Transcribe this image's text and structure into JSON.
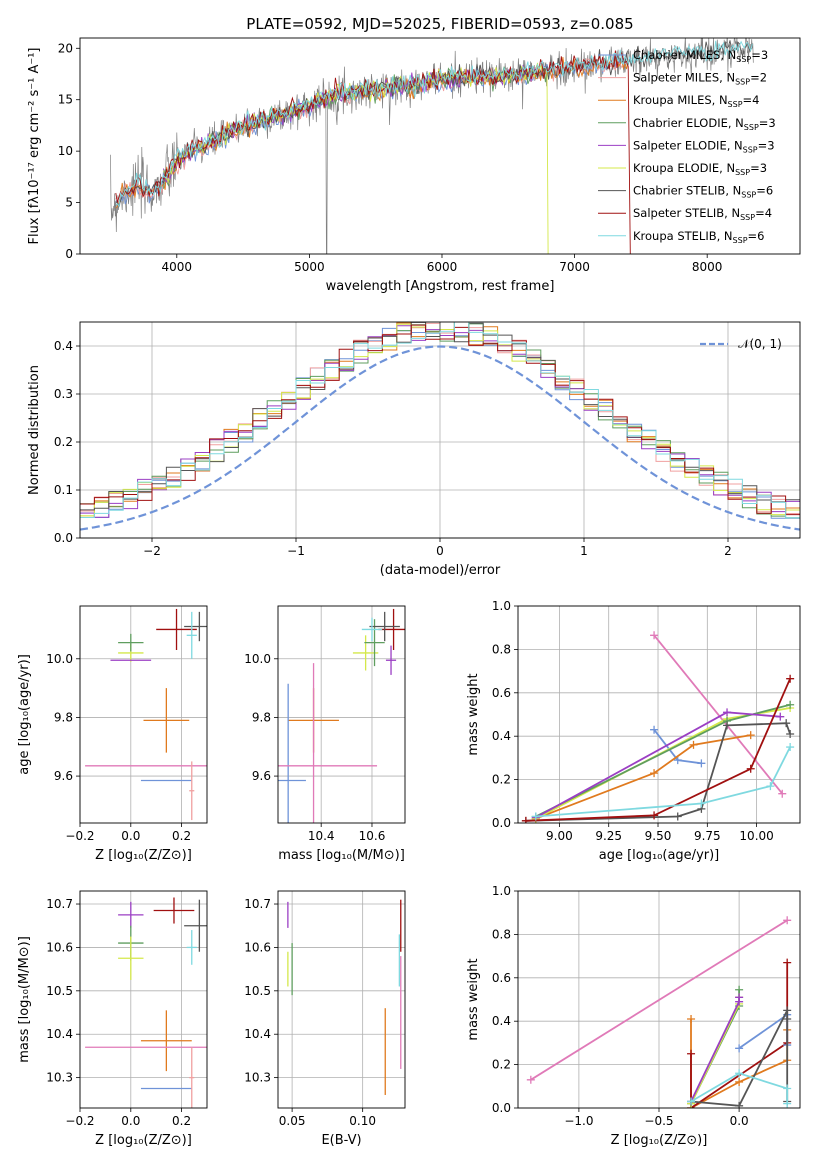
{
  "figure_title": "PLATE=0592, MJD=52025, FIBERID=0593, z=0.085",
  "colors": {
    "chabrier_miles": "#6f93d8",
    "salpeter_miles": "#f0a0a0",
    "kroupa_miles": "#e07a1e",
    "chabrier_elodie": "#5f9e5f",
    "salpeter_elodie": "#9b3fc4",
    "kroupa_elodie": "#d4e84a",
    "chabrier_stelib": "#555555",
    "salpeter_stelib": "#a01010",
    "kroupa_stelib": "#7fd9e0",
    "gaussian": "#6f93d8",
    "pink": "#e07ab8"
  },
  "chart_data": [
    {
      "id": "spectrum",
      "type": "line",
      "xlabel": "wavelength [Angstrom, rest frame]",
      "ylabel": "Flux [fλ10⁻¹⁷ erg cm⁻² s⁻¹ A⁻¹]",
      "xlim": [
        3270,
        8700
      ],
      "ylim": [
        0,
        21
      ],
      "xticks": [
        "4000",
        "5000",
        "6000",
        "7000",
        "8000"
      ],
      "yticks": [
        "0",
        "5",
        "10",
        "15",
        "20"
      ],
      "grid": false,
      "legend_position": "top-right",
      "legend": [
        {
          "text": "Chabrier MILES, N",
          "sub": "SSP",
          "suffix": "=3"
        },
        {
          "text": "Salpeter MILES, N",
          "sub": "SSP",
          "suffix": "=2"
        },
        {
          "text": "Kroupa MILES, N",
          "sub": "SSP",
          "suffix": "=4"
        },
        {
          "text": "Chabrier ELODIE, N",
          "sub": "SSP",
          "suffix": "=3"
        },
        {
          "text": "Salpeter ELODIE, N",
          "sub": "SSP",
          "suffix": "=3"
        },
        {
          "text": "Kroupa ELODIE, N",
          "sub": "SSP",
          "suffix": "=3"
        },
        {
          "text": "Chabrier STELIB, N",
          "sub": "SSP",
          "suffix": "=6"
        },
        {
          "text": "Salpeter STELIB, N",
          "sub": "SSP",
          "suffix": "=4"
        },
        {
          "text": "Kroupa STELIB, N",
          "sub": "SSP",
          "suffix": "=6"
        }
      ],
      "continuum": [
        [
          3500,
          4.2
        ],
        [
          3600,
          6.0
        ],
        [
          3700,
          6.5
        ],
        [
          3800,
          6.0
        ],
        [
          3900,
          7.0
        ],
        [
          4000,
          9.0
        ],
        [
          4100,
          10.0
        ],
        [
          4300,
          11.0
        ],
        [
          4500,
          12.5
        ],
        [
          4800,
          13.5
        ],
        [
          5000,
          14.5
        ],
        [
          5200,
          15.5
        ],
        [
          5500,
          16.0
        ],
        [
          5800,
          16.5
        ],
        [
          6000,
          17.0
        ],
        [
          6300,
          17.2
        ],
        [
          6600,
          17.5
        ],
        [
          6900,
          18.0
        ],
        [
          7200,
          18.5
        ],
        [
          7400,
          18.8
        ],
        [
          7700,
          19.2
        ],
        [
          8000,
          19.6
        ],
        [
          8300,
          20.0
        ]
      ]
    },
    {
      "id": "residuals",
      "type": "histogram",
      "xlabel": "(data-model)/error",
      "ylabel": "Normed distribution",
      "xlim": [
        -2.5,
        2.5
      ],
      "ylim": [
        0,
        0.45
      ],
      "xticks": [
        "−2",
        "−1",
        "0",
        "1",
        "2"
      ],
      "yticks": [
        "0.0",
        "0.1",
        "0.2",
        "0.3",
        "0.4"
      ],
      "grid": true,
      "legend_position": "top-right",
      "legend": [
        {
          "text": "𝒩(0, 1)"
        }
      ],
      "bin_width": 0.1
    },
    {
      "id": "age_vs_Z",
      "type": "scatter",
      "xlabel": "Z [log₁₀(Z/Z⊙)]",
      "ylabel": "age  [log₁₀(age/yr)]",
      "xlim": [
        -0.2,
        0.3
      ],
      "ylim": [
        9.44,
        10.18
      ],
      "xticks": [
        "−0.2",
        "0.0",
        "0.2"
      ],
      "yticks": [
        "9.6",
        "9.8",
        "10.0"
      ],
      "grid": true,
      "points": [
        {
          "model": "kroupa_miles",
          "x": 0.14,
          "xerr": 0.09,
          "y": 9.79,
          "yerr": 0.11
        },
        {
          "model": "chabrier_miles",
          "x": 0.14,
          "xerr": 0.1,
          "y": 9.585,
          "yerr": 0.0
        },
        {
          "model": "pink",
          "x": 0.06,
          "xerr": 0.24,
          "y": 9.635,
          "yerr": 0.0
        },
        {
          "model": "kroupa_elodie",
          "x": 0.0,
          "xerr": 0.05,
          "y": 10.02,
          "yerr": 0.03
        },
        {
          "model": "chabrier_elodie",
          "x": 0.0,
          "xerr": 0.05,
          "y": 10.055,
          "yerr": 0.03
        },
        {
          "model": "salpeter_elodie",
          "x": 0.0,
          "xerr": 0.08,
          "y": 9.995,
          "yerr": 0.0
        },
        {
          "model": "salpeter_stelib",
          "x": 0.18,
          "xerr": 0.08,
          "y": 10.1,
          "yerr": 0.07
        },
        {
          "model": "chabrier_stelib",
          "x": 0.27,
          "xerr": 0.06,
          "y": 10.11,
          "yerr": 0.05
        },
        {
          "model": "kroupa_stelib",
          "x": 0.24,
          "xerr": 0.02,
          "y": 10.08,
          "yerr": 0.08
        },
        {
          "model": "salpeter_miles",
          "x": 0.24,
          "xerr": 0.01,
          "y": 9.55,
          "yerr": 0.1
        }
      ]
    },
    {
      "id": "age_vs_mass",
      "type": "scatter",
      "xlabel": "mass [log₁₀(M/M⊙)]",
      "ylabel": "",
      "xlim": [
        10.23,
        10.73
      ],
      "ylim": [
        9.44,
        10.18
      ],
      "xticks": [
        "10.4",
        "10.6"
      ],
      "yticks": [
        "9.6",
        "9.8",
        "10.0"
      ],
      "grid": true,
      "points": [
        {
          "model": "kroupa_miles",
          "x": 10.37,
          "xerr": 0.1,
          "y": 9.79,
          "yerr": 0.11
        },
        {
          "model": "chabrier_miles",
          "x": 10.27,
          "xerr": 0.07,
          "y": 9.585,
          "yerr": 0.33
        },
        {
          "model": "pink",
          "x": 10.37,
          "xerr": 0.25,
          "y": 9.635,
          "yerr": 0.35
        },
        {
          "model": "kroupa_elodie",
          "x": 10.575,
          "xerr": 0.05,
          "y": 10.02,
          "yerr": 0.06
        },
        {
          "model": "chabrier_elodie",
          "x": 10.61,
          "xerr": 0.04,
          "y": 10.055,
          "yerr": 0.08
        },
        {
          "model": "salpeter_elodie",
          "x": 10.675,
          "xerr": 0.02,
          "y": 9.995,
          "yerr": 0.05
        },
        {
          "model": "salpeter_stelib",
          "x": 10.685,
          "xerr": 0.06,
          "y": 10.1,
          "yerr": 0.07
        },
        {
          "model": "chabrier_stelib",
          "x": 10.65,
          "xerr": 0.06,
          "y": 10.11,
          "yerr": 0.05
        },
        {
          "model": "kroupa_stelib",
          "x": 10.6,
          "xerr": 0.04,
          "y": 10.1,
          "yerr": 0.04
        }
      ]
    },
    {
      "id": "massweight_vs_age",
      "type": "line",
      "xlabel": "age  [log₁₀(age/yr)]",
      "ylabel": "mass weight",
      "xlim": [
        8.79,
        10.22
      ],
      "ylim": [
        0,
        1
      ],
      "xticks": [
        "9.00",
        "9.25",
        "9.50",
        "9.75",
        "10.00"
      ],
      "yticks": [
        "0.0",
        "0.2",
        "0.4",
        "0.6",
        "0.8",
        "1.0"
      ],
      "grid": true,
      "series": [
        {
          "model": "chabrier_miles",
          "x": [
            9.48,
            9.6,
            9.72
          ],
          "y": [
            0.43,
            0.29,
            0.275
          ]
        },
        {
          "model": "pink",
          "x": [
            9.48,
            10.13
          ],
          "y": [
            0.865,
            0.135
          ]
        },
        {
          "model": "kroupa_miles",
          "x": [
            8.88,
            9.48,
            9.68,
            9.97
          ],
          "y": [
            0.02,
            0.23,
            0.36,
            0.405
          ]
        },
        {
          "model": "kroupa_elodie",
          "x": [
            8.88,
            9.85,
            10.17
          ],
          "y": [
            0.02,
            0.48,
            0.53
          ]
        },
        {
          "model": "chabrier_elodie",
          "x": [
            8.88,
            9.85,
            10.17
          ],
          "y": [
            0.03,
            0.47,
            0.545
          ]
        },
        {
          "model": "salpeter_elodie",
          "x": [
            8.88,
            9.85,
            10.12
          ],
          "y": [
            0.025,
            0.51,
            0.49
          ]
        },
        {
          "model": "chabrier_stelib",
          "x": [
            8.83,
            9.6,
            9.72,
            9.85,
            10.15,
            10.17
          ],
          "y": [
            0.01,
            0.03,
            0.065,
            0.45,
            0.46,
            0.41
          ]
        },
        {
          "model": "salpeter_stelib",
          "x": [
            8.83,
            9.48,
            9.97,
            10.17
          ],
          "y": [
            0.01,
            0.035,
            0.25,
            0.665
          ]
        },
        {
          "model": "kroupa_stelib",
          "x": [
            8.88,
            9.72,
            10.07,
            10.17
          ],
          "y": [
            0.03,
            0.09,
            0.17,
            0.35
          ]
        }
      ]
    },
    {
      "id": "mass_vs_Z",
      "type": "scatter",
      "xlabel": "Z [log₁₀(Z/Z⊙)]",
      "ylabel": "mass [log₁₀(M/M⊙)]",
      "xlim": [
        -0.2,
        0.3
      ],
      "ylim": [
        10.23,
        10.73
      ],
      "xticks": [
        "−0.2",
        "0.0",
        "0.2"
      ],
      "yticks": [
        "10.3",
        "10.4",
        "10.5",
        "10.6",
        "10.7"
      ],
      "grid": true,
      "points": [
        {
          "model": "salpeter_elodie",
          "x": 0.0,
          "xerr": 0.05,
          "y": 10.675,
          "yerr": 0.03
        },
        {
          "model": "salpeter_stelib",
          "x": 0.17,
          "xerr": 0.08,
          "y": 10.685,
          "yerr": 0.03
        },
        {
          "model": "chabrier_stelib",
          "x": 0.27,
          "xerr": 0.06,
          "y": 10.65,
          "yerr": 0.06
        },
        {
          "model": "chabrier_elodie",
          "x": 0.0,
          "xerr": 0.05,
          "y": 10.61,
          "yerr": 0.04
        },
        {
          "model": "kroupa_stelib",
          "x": 0.24,
          "xerr": 0.02,
          "y": 10.6,
          "yerr": 0.04
        },
        {
          "model": "kroupa_elodie",
          "x": 0.0,
          "xerr": 0.05,
          "y": 10.575,
          "yerr": 0.05
        },
        {
          "model": "kroupa_miles",
          "x": 0.14,
          "xerr": 0.1,
          "y": 10.385,
          "yerr": 0.07
        },
        {
          "model": "pink",
          "x": 0.06,
          "xerr": 0.24,
          "y": 10.37,
          "yerr": 0.0
        },
        {
          "model": "chabrier_miles",
          "x": 0.14,
          "xerr": 0.1,
          "y": 10.275,
          "yerr": 0.0
        },
        {
          "model": "salpeter_miles",
          "x": 0.24,
          "xerr": 0.01,
          "y": 10.3,
          "yerr": 0.07
        }
      ]
    },
    {
      "id": "mass_vs_ebv",
      "type": "scatter",
      "xlabel": "E(B-V)",
      "ylabel": "",
      "xlim": [
        0.04,
        0.13
      ],
      "ylim": [
        10.23,
        10.73
      ],
      "xticks": [
        "0.05",
        "0.10"
      ],
      "yticks": [
        "10.3",
        "10.4",
        "10.5",
        "10.6",
        "10.7"
      ],
      "grid": true,
      "points": [
        {
          "model": "salpeter_elodie",
          "x": 0.047,
          "xerr": 0.0,
          "y": 10.675,
          "yerr": 0.03
        },
        {
          "model": "chabrier_elodie",
          "x": 0.05,
          "xerr": 0.0,
          "y": 10.55,
          "yerr": 0.06
        },
        {
          "model": "kroupa_elodie",
          "x": 0.047,
          "xerr": 0.0,
          "y": 10.55,
          "yerr": 0.04
        },
        {
          "model": "kroupa_miles",
          "x": 0.116,
          "xerr": 0.0,
          "y": 10.36,
          "yerr": 0.1
        },
        {
          "model": "salpeter_stelib",
          "x": 0.127,
          "xerr": 0.0,
          "y": 10.65,
          "yerr": 0.06
        },
        {
          "model": "kroupa_stelib",
          "x": 0.126,
          "xerr": 0.0,
          "y": 10.57,
          "yerr": 0.06
        },
        {
          "model": "pink",
          "x": 0.127,
          "xerr": 0.0,
          "y": 10.45,
          "yerr": 0.13
        }
      ]
    },
    {
      "id": "massweight_vs_Z",
      "type": "line",
      "xlabel": "Z [log₁₀(Z/Z⊙)]",
      "ylabel": "mass weight",
      "xlim": [
        -1.38,
        0.38
      ],
      "ylim": [
        0,
        1
      ],
      "xticks": [
        "−1.0",
        "−0.5",
        "0.0"
      ],
      "yticks": [
        "0.0",
        "0.2",
        "0.4",
        "0.6",
        "0.8",
        "1.0"
      ],
      "grid": true,
      "series": [
        {
          "model": "pink",
          "x": [
            -1.3,
            0.3
          ],
          "y": [
            0.13,
            0.865
          ]
        },
        {
          "model": "kroupa_miles",
          "x": [
            -0.3,
            -0.3,
            0.0,
            0.3,
            0.3
          ],
          "y": [
            0.41,
            0.0,
            0.12,
            0.22,
            0.36
          ]
        },
        {
          "model": "salpeter_stelib",
          "x": [
            -0.3,
            -0.3,
            0.3,
            0.3
          ],
          "y": [
            0.25,
            0.0,
            0.3,
            0.67
          ]
        },
        {
          "model": "chabrier_elodie",
          "x": [
            -0.3,
            0.0,
            0.0
          ],
          "y": [
            0.02,
            0.47,
            0.545
          ]
        },
        {
          "model": "kroupa_elodie",
          "x": [
            -0.3,
            0.0,
            0.0
          ],
          "y": [
            0.02,
            0.48,
            0.51
          ]
        },
        {
          "model": "salpeter_elodie",
          "x": [
            -0.3,
            0.0,
            0.0
          ],
          "y": [
            0.03,
            0.49,
            0.51
          ]
        },
        {
          "model": "chabrier_miles",
          "x": [
            0.0,
            0.3,
            0.3
          ],
          "y": [
            0.275,
            0.43,
            0.29
          ]
        },
        {
          "model": "chabrier_stelib",
          "x": [
            -0.3,
            0.0,
            0.3,
            0.3,
            0.3
          ],
          "y": [
            0.03,
            0.01,
            0.45,
            0.41,
            0.03
          ]
        },
        {
          "model": "kroupa_stelib",
          "x": [
            -0.3,
            0.0,
            0.3,
            0.3
          ],
          "y": [
            0.03,
            0.16,
            0.09,
            0.02
          ]
        }
      ]
    }
  ]
}
